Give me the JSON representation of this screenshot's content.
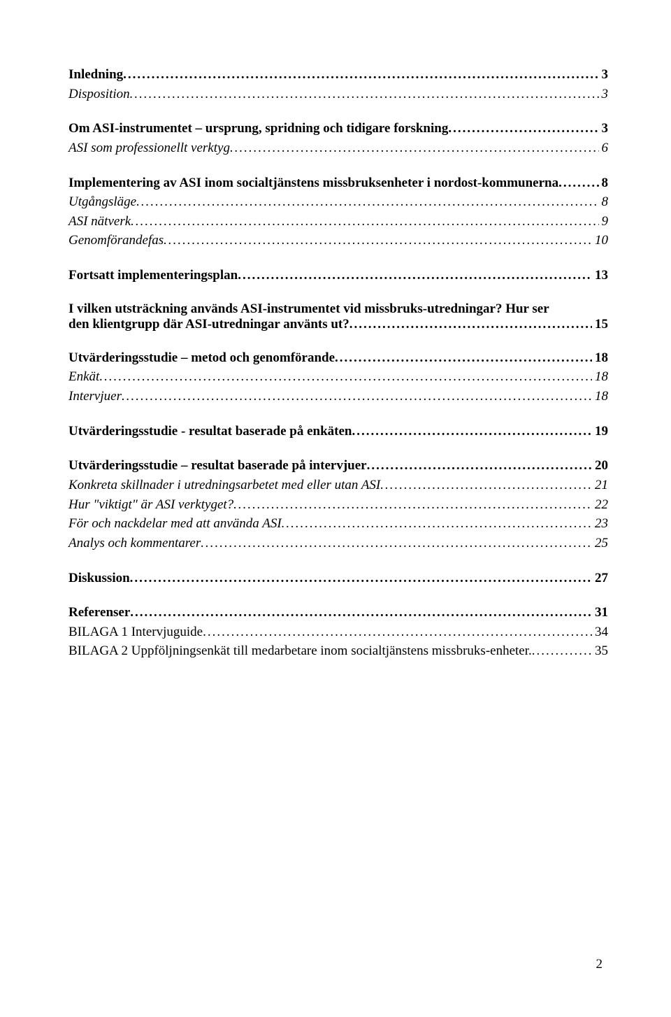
{
  "typography": {
    "font_family": "Times New Roman",
    "body_fontsize_pt": 14,
    "bold_weight": 700,
    "italic_style": "italic",
    "text_color": "#000000",
    "background_color": "#ffffff"
  },
  "page_number": "2",
  "toc": [
    {
      "title": "Inledning",
      "page": "3",
      "level": 0,
      "bold": true,
      "italic": false,
      "wrap": false
    },
    {
      "title": "Disposition",
      "page": "3",
      "level": 1,
      "bold": false,
      "italic": true,
      "wrap": false
    },
    {
      "title": "Om ASI-instrumentet – ursprung, spridning och tidigare forskning",
      "page": "3",
      "level": 0,
      "bold": true,
      "italic": false,
      "wrap": false
    },
    {
      "title": "ASI som professionellt verktyg",
      "page": "6",
      "level": 1,
      "bold": false,
      "italic": true,
      "wrap": false
    },
    {
      "title": "Implementering av ASI inom socialtjänstens missbruksenheter i nordost-kommunerna",
      "page": "8",
      "level": 0,
      "bold": true,
      "italic": false,
      "wrap": false
    },
    {
      "title": "Utgångsläge",
      "page": "8",
      "level": 1,
      "bold": false,
      "italic": true,
      "wrap": false
    },
    {
      "title": "ASI nätverk",
      "page": "9",
      "level": 1,
      "bold": false,
      "italic": true,
      "wrap": false
    },
    {
      "title": "Genomförandefas",
      "page": "10",
      "level": 1,
      "bold": false,
      "italic": true,
      "wrap": false
    },
    {
      "title": "Fortsatt implementeringsplan",
      "page": "13",
      "level": 0,
      "bold": true,
      "italic": false,
      "wrap": false
    },
    {
      "title_lines": [
        "I vilken utsträckning används ASI-instrumentet vid missbruks-utredningar? Hur ser",
        "den klientgrupp där ASI-utredningar använts ut?"
      ],
      "page": "15",
      "level": 0,
      "bold": true,
      "italic": false,
      "wrap": true
    },
    {
      "title": "Utvärderingsstudie – metod och genomförande",
      "page": "18",
      "level": 0,
      "bold": true,
      "italic": false,
      "wrap": false
    },
    {
      "title": "Enkät",
      "page": "18",
      "level": 1,
      "bold": false,
      "italic": true,
      "wrap": false
    },
    {
      "title": "Intervjuer",
      "page": "18",
      "level": 1,
      "bold": false,
      "italic": true,
      "wrap": false
    },
    {
      "title": "Utvärderingsstudie - resultat baserade på enkäten",
      "page": "19",
      "level": 0,
      "bold": true,
      "italic": false,
      "wrap": false
    },
    {
      "title": "Utvärderingsstudie – resultat baserade på intervjuer",
      "page": "20",
      "level": 0,
      "bold": true,
      "italic": false,
      "wrap": false
    },
    {
      "title": "Konkreta skillnader i utredningsarbetet med eller utan ASI",
      "page": "21",
      "level": 1,
      "bold": false,
      "italic": true,
      "wrap": false
    },
    {
      "title": "Hur \"viktigt\" är ASI verktyget?",
      "page": "22",
      "level": 1,
      "bold": false,
      "italic": true,
      "wrap": false
    },
    {
      "title": "För och nackdelar med att använda ASI",
      "page": "23",
      "level": 1,
      "bold": false,
      "italic": true,
      "wrap": false
    },
    {
      "title": "Analys och kommentarer",
      "page": "25",
      "level": 1,
      "bold": false,
      "italic": true,
      "wrap": false
    },
    {
      "title": "Diskussion",
      "page": "27",
      "level": 0,
      "bold": true,
      "italic": false,
      "wrap": false
    },
    {
      "title": "Referenser",
      "page": "31",
      "level": 0,
      "bold": true,
      "italic": false,
      "wrap": false
    },
    {
      "title": "BILAGA 1 Intervjuguide",
      "page": "34",
      "level": 1,
      "bold": false,
      "italic": false,
      "wrap": false
    },
    {
      "title": "BILAGA 2 Uppföljningsenkät till medarbetare inom socialtjänstens missbruks-enheter.",
      "page": "35",
      "level": 2,
      "bold": false,
      "italic": false,
      "wrap": false
    }
  ]
}
